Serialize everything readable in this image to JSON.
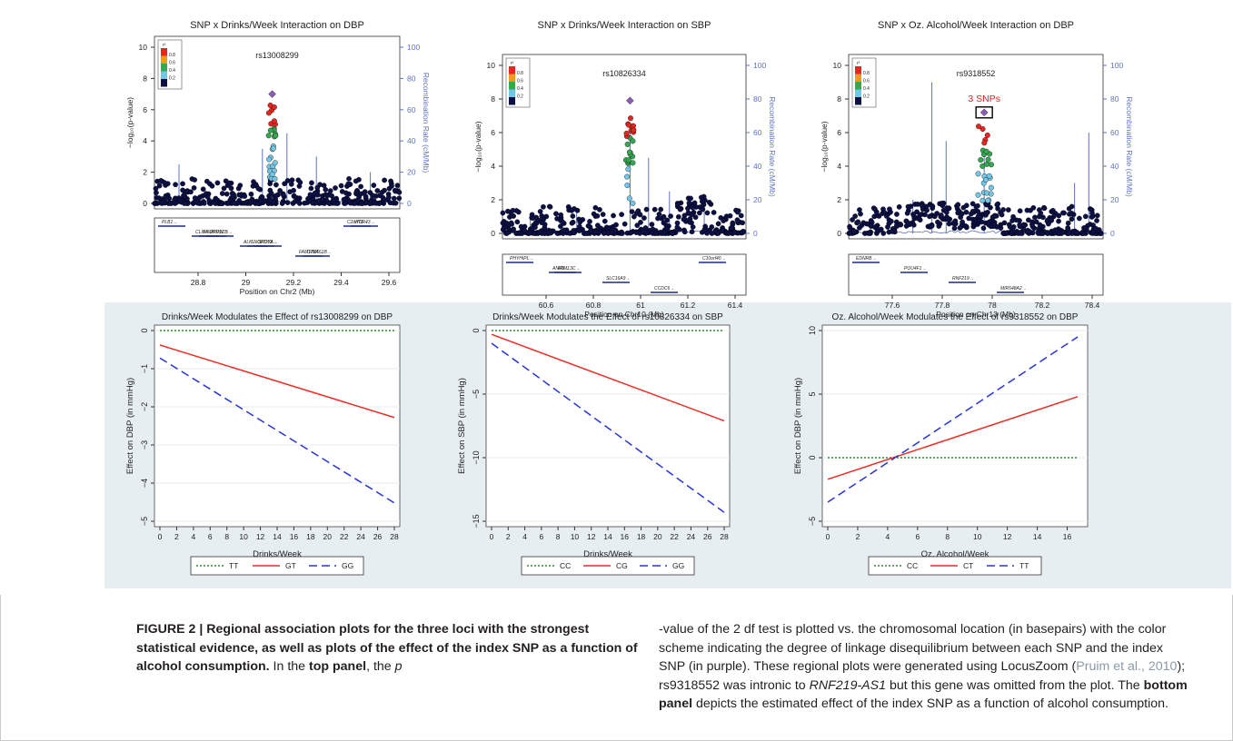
{
  "colors": {
    "purple": "#8d5bb7",
    "red": "#e8251f",
    "orange": "#f39a1c",
    "green": "#35a852",
    "cyan": "#74c6e6",
    "navy": "#0c1043",
    "recomb": "#5f72c1",
    "tt": "#2e8b2e",
    "line_red": "#ee2c24",
    "line_blue": "#2834d6"
  },
  "regional": [
    {
      "title": "SNP x Drinks/Week Interaction on DBP",
      "snp": "rs13008299",
      "ylabel": "−log₁₀(p-value)",
      "y2label": "Recombination Rate (cM/Mb)",
      "yticks": [
        "0",
        "2",
        "4",
        "6",
        "8",
        "10"
      ],
      "y2ticks": [
        "0",
        "20",
        "40",
        "60",
        "80",
        "100"
      ],
      "xticks": [
        "28.8",
        "29",
        "29.2",
        "29.4",
        "29.6"
      ],
      "xlabel": "Position on Chr2 (Mb)",
      "legend": {
        "title": "r²",
        "items": [
          "0.8",
          "0.6",
          "0.4",
          "0.2"
        ]
      },
      "genes": [
        "PLB1",
        "PPP1CB",
        "SPDYA",
        "TRMT61B",
        "WDR43",
        "SNORD92",
        "SNORD53",
        "FAM179A",
        "C2orf71",
        "CLIP4",
        "ALK"
      ]
    },
    {
      "title": "SNP x Drinks/Week Interaction on SBP",
      "snp": "rs10826334",
      "ylabel": "−log₁₀(p-value)",
      "y2label": "Recombination Rate (cM/Mb)",
      "yticks": [
        "0",
        "2",
        "4",
        "6",
        "8",
        "10"
      ],
      "y2ticks": [
        "0",
        "20",
        "40",
        "60",
        "80",
        "100"
      ],
      "xticks": [
        "60.6",
        "60.8",
        "61",
        "61.2",
        "61.4"
      ],
      "xlabel": "Position on Chr10 (Mb)",
      "legend": {
        "title": "r²",
        "items": [
          "0.8",
          "0.6",
          "0.4",
          "0.2"
        ]
      },
      "genes": [
        "PHYHIPL",
        "FAM13C",
        "SLC16A9",
        "CCDC6",
        "C10orf40",
        "ANK3"
      ]
    },
    {
      "title": "SNP x Oz. Alcohol/Week Interaction on DBP",
      "snp": "rs9318552",
      "annotation": "3 SNPs",
      "ylabel": "−log₁₀(p-value)",
      "y2label": "Recombination Rate (cM/Mb)",
      "yticks": [
        "0",
        "2",
        "4",
        "6",
        "8",
        "10"
      ],
      "y2ticks": [
        "0",
        "20",
        "40",
        "60",
        "80",
        "100"
      ],
      "xticks": [
        "77.6",
        "77.8",
        "78",
        "78.2",
        "78.4"
      ],
      "xlabel": "Position on Chr13 (Mb)",
      "legend": {
        "title": "r²",
        "items": [
          "0.8",
          "0.6",
          "0.4",
          "0.2"
        ]
      },
      "genes": [
        "EDNRB",
        "POU4F1",
        "RNF219",
        "MIR548A2"
      ]
    }
  ],
  "chart_data": [
    {
      "type": "line",
      "title": "Drinks/Week Modulates the Effect of rs13008299 on DBP",
      "xlabel": "Drinks/Week",
      "ylabel": "Effect on DBP (in mmHg)",
      "xlim": [
        0,
        28
      ],
      "ylim": [
        -5,
        0
      ],
      "xticks": [
        0,
        2,
        4,
        6,
        8,
        10,
        12,
        14,
        16,
        18,
        20,
        22,
        24,
        26,
        28
      ],
      "yticks": [
        0,
        -1,
        -2,
        -3,
        -4,
        -5
      ],
      "series": [
        {
          "name": "TT",
          "x": [
            0,
            28
          ],
          "y": [
            0,
            0
          ],
          "color": "#2e8b2e",
          "dash": "2 2"
        },
        {
          "name": "GT",
          "x": [
            0,
            28
          ],
          "y": [
            -0.38,
            -2.28
          ],
          "color": "#ee2c24",
          "dash": ""
        },
        {
          "name": "GG",
          "x": [
            0,
            28
          ],
          "y": [
            -0.72,
            -4.52
          ],
          "color": "#2834d6",
          "dash": "9 5"
        }
      ],
      "legend": "bottom"
    },
    {
      "type": "line",
      "title": "Drinks/Week Modulates the Effect of rs10826334 on SBP",
      "xlabel": "Drinks/Week",
      "ylabel": "Effect on SBP (in mmHg)",
      "xlim": [
        0,
        28
      ],
      "ylim": [
        -15,
        0
      ],
      "xticks": [
        0,
        2,
        4,
        6,
        8,
        10,
        12,
        14,
        16,
        18,
        20,
        22,
        24,
        26,
        28
      ],
      "yticks": [
        0,
        -5,
        -10,
        -15
      ],
      "series": [
        {
          "name": "CC",
          "x": [
            0,
            28
          ],
          "y": [
            0,
            0
          ],
          "color": "#2e8b2e",
          "dash": "2 2"
        },
        {
          "name": "CG",
          "x": [
            0,
            28
          ],
          "y": [
            -0.3,
            -7.1
          ],
          "color": "#ee2c24",
          "dash": ""
        },
        {
          "name": "GG",
          "x": [
            0,
            28
          ],
          "y": [
            -1.0,
            -14.3
          ],
          "color": "#2834d6",
          "dash": "9 5"
        }
      ],
      "legend": "bottom"
    },
    {
      "type": "line",
      "title": "Oz. Alcohol/Week Modulates the Effect of rs9318552 on DBP",
      "xlabel": "Oz. Alcohol/Week",
      "ylabel": "Effect on DBP (in mmHg)",
      "xlim": [
        0,
        17
      ],
      "ylim": [
        -5,
        10
      ],
      "xticks": [
        0,
        2,
        4,
        6,
        8,
        10,
        12,
        14,
        16
      ],
      "yticks": [
        10,
        5,
        0,
        -5
      ],
      "series": [
        {
          "name": "CC",
          "x": [
            0,
            16.7
          ],
          "y": [
            0,
            0
          ],
          "color": "#2e8b2e",
          "dash": "2 2"
        },
        {
          "name": "CT",
          "x": [
            0,
            16.7
          ],
          "y": [
            -1.7,
            4.8
          ],
          "color": "#ee2c24",
          "dash": ""
        },
        {
          "name": "TT",
          "x": [
            0,
            16.7
          ],
          "y": [
            -3.5,
            9.5
          ],
          "color": "#2834d6",
          "dash": "9 5"
        }
      ],
      "legend": "bottom"
    }
  ],
  "caption": {
    "label": "FIGURE 2 | Regional association plots for the three loci with the strongest statistical evidence, as well as plots of the effect of the index SNP as a function of alcohol consumption.",
    "p1": " In the ",
    "top_panel": "top panel",
    "p2": ", the ",
    "pvalue": "p",
    "p3": "-value of the 2 df test is plotted vs. the chromosomal location (in basepairs) with the color scheme indicating the degree of linkage disequilibrium between each SNP and the index SNP (in purple). These regional plots were generated using LocusZoom (",
    "citation": "Pruim et al., 2010",
    "p4": "); rs9318552 was intronic to ",
    "gene": "RNF219-AS1",
    "p5": " but this gene was omitted from the plot. The ",
    "bottom_panel": "bottom panel",
    "p6": " depicts the estimated effect of the index SNP as a function of alcohol consumption."
  }
}
